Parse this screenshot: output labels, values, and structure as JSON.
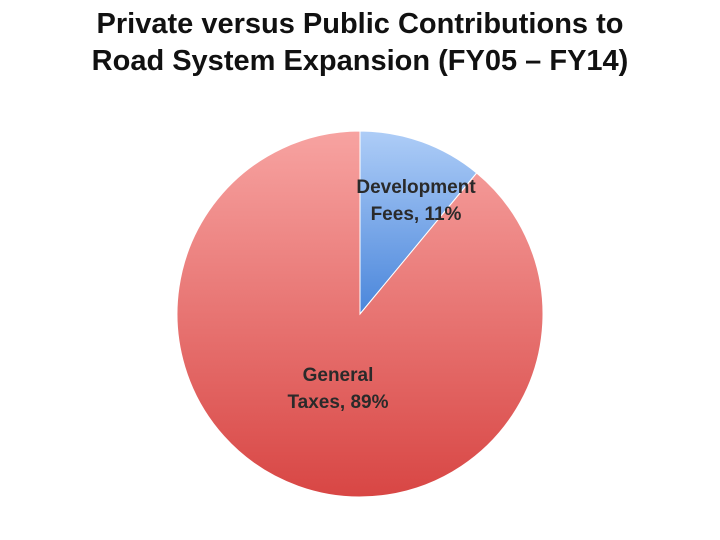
{
  "chart_data": {
    "type": "pie",
    "title_lines": [
      "Private versus Public Contributions to",
      "Road System Expansion (FY05 – FY14)"
    ],
    "slices": [
      {
        "name": "Development Fees",
        "value": 11,
        "label_lines": [
          "Development",
          "Fees, 11%"
        ],
        "color_light": "#aecdf7",
        "color_dark": "#4a86db"
      },
      {
        "name": "General Taxes",
        "value": 89,
        "label_lines": [
          "General",
          "Taxes, 89%"
        ],
        "color_light": "#f7a3a1",
        "color_dark": "#d84644"
      }
    ],
    "start_angle": "12 o'clock",
    "direction": "clockwise",
    "legend": "none"
  }
}
